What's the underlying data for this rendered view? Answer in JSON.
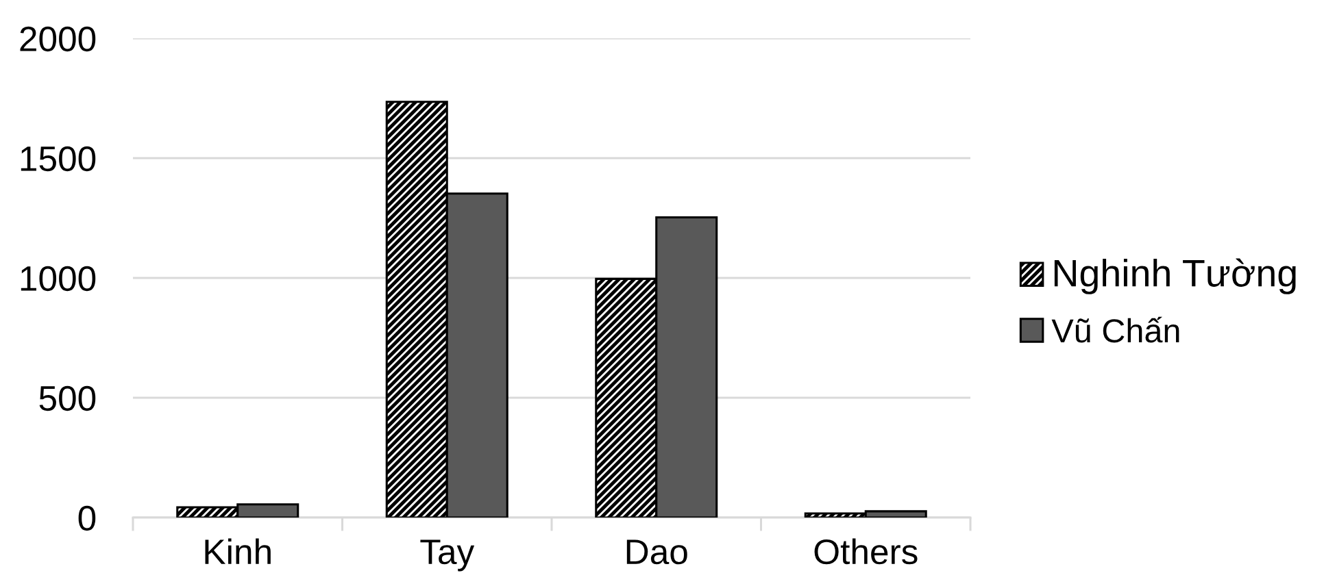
{
  "chart_data": {
    "type": "bar",
    "categories": [
      "Kinh",
      "Tay",
      "Dao",
      "Others"
    ],
    "series": [
      {
        "name": "Nghinh Tường",
        "color": "#000000",
        "values": [
          43,
          1735,
          996,
          17
        ]
      },
      {
        "name": "Vũ Chấn",
        "color": "#595959",
        "values": [
          55,
          1352,
          1253,
          26
        ]
      }
    ],
    "ylim": [
      0,
      2000
    ],
    "yticks": [
      0,
      500,
      1000,
      1500,
      2000
    ],
    "grid": "y",
    "legend": "right"
  }
}
